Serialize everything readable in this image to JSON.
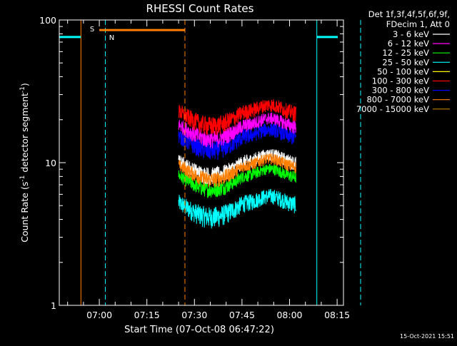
{
  "chart_data": {
    "type": "line",
    "title": "RHESSI Count Rates",
    "xlabel": "Start Time (07-Oct-08 06:47:22)",
    "ylabel": "Count Rate (s⁻¹ detector segment⁻¹)",
    "ylabel_main": "Count Rate (s",
    "ylabel_mid": " detector segment",
    "ylabel_end": ")",
    "ylabel_sup": "-1",
    "yscale": "log",
    "ylim": [
      1,
      100
    ],
    "xlim_minutes": [
      47.37,
      137.0
    ],
    "y_ticks": [
      {
        "value": 1,
        "label": "1"
      },
      {
        "value": 10,
        "label": "10"
      },
      {
        "value": 100,
        "label": "100"
      }
    ],
    "x_ticks": [
      {
        "value": 60,
        "label": "07:00"
      },
      {
        "value": 75,
        "label": "07:15"
      },
      {
        "value": 90,
        "label": "07:30"
      },
      {
        "value": 105,
        "label": "07:45"
      },
      {
        "value": 120,
        "label": "08:00"
      },
      {
        "value": 135,
        "label": "08:15"
      }
    ],
    "legend_header": [
      "Det 1f,3f,4f,5f,6f,9f,",
      "FDecim 1, Att 0"
    ],
    "data_window_minutes": [
      85.0,
      122.0
    ],
    "series": [
      {
        "name": "3 - 6 keV",
        "color": "#ffffff",
        "base": 9.2,
        "noise": 0.9
      },
      {
        "name": "6 - 12 keV",
        "color": "#ff00ff",
        "base": 16.5,
        "noise": 0.9
      },
      {
        "name": "12 - 25 keV",
        "color": "#00ff00",
        "base": 7.3,
        "noise": 0.8
      },
      {
        "name": "25 - 50 keV",
        "color": "#00ffff",
        "base": 4.7,
        "noise": 1.1
      },
      {
        "name": "50 - 100 keV",
        "color": "#ffff00",
        "base": null,
        "noise": 0
      },
      {
        "name": "100 - 300 keV",
        "color": "#ff0000",
        "base": 20.5,
        "noise": 1.0
      },
      {
        "name": "300 - 800 keV",
        "color": "#0000ff",
        "base": 13.8,
        "noise": 1.0
      },
      {
        "name": "800 - 7000 keV",
        "color": "#ff8000",
        "base": 8.6,
        "noise": 0.8
      },
      {
        "name": "7000 - 15000 keV",
        "color": "#c08000",
        "base": null,
        "noise": 0
      }
    ],
    "annotations": {
      "s_flag": {
        "label": "S",
        "start_min": 60.0,
        "end_min": 87.0,
        "level": 85,
        "color": "#ff8000"
      },
      "n_flag": {
        "label": "N",
        "start_min": 47.37,
        "end_min": 54.2,
        "level": 76,
        "color": "#00ffff"
      },
      "n_flag_2": {
        "start_min": 128.6,
        "end_min": 135.2,
        "level": 76,
        "color": "#00ffff"
      },
      "orange_solid_lines_min": [
        54.2
      ],
      "orange_dashed_lines_min": [
        87.0
      ],
      "cyan_solid_lines_min": [
        47.37,
        128.6
      ],
      "cyan_dashed_lines_min": [
        61.9,
        142.4
      ]
    }
  },
  "footer": {
    "timestamp": "15-Oct-2021 15:51"
  }
}
